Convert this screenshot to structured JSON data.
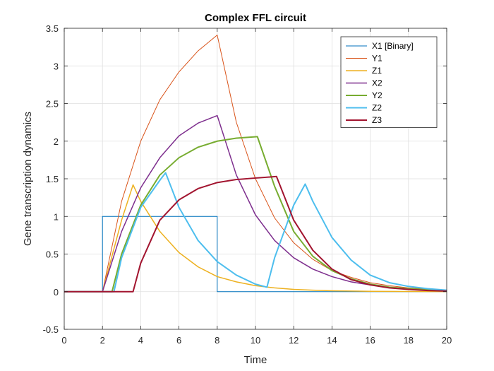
{
  "chart_data": {
    "type": "line",
    "title": "Complex FFL circuit",
    "xlabel": "Time",
    "ylabel": "Gene transcription dynamics",
    "xlim": [
      0,
      20
    ],
    "ylim": [
      -0.5,
      3.5
    ],
    "xticks": [
      0,
      2,
      4,
      6,
      8,
      10,
      12,
      14,
      16,
      18,
      20
    ],
    "yticks": [
      -0.5,
      0,
      0.5,
      1,
      1.5,
      2,
      2.5,
      3,
      3.5
    ],
    "grid": true,
    "legend_position": "top-right",
    "series": [
      {
        "name": "X1 [Binary]",
        "color": "#0072BD",
        "width": 1,
        "x": [
          0,
          2,
          2,
          8,
          8,
          20
        ],
        "y": [
          0,
          0,
          1,
          1,
          0,
          0
        ]
      },
      {
        "name": "Y1",
        "color": "#D95319",
        "width": 1,
        "x": [
          0,
          2,
          3,
          4,
          5,
          6,
          7,
          8,
          9,
          10,
          11,
          12,
          13,
          14,
          15,
          16,
          17,
          18,
          19,
          20
        ],
        "y": [
          0,
          0,
          1.2,
          2.0,
          2.55,
          2.92,
          3.2,
          3.41,
          2.25,
          1.5,
          0.98,
          0.65,
          0.43,
          0.28,
          0.19,
          0.12,
          0.08,
          0.05,
          0.035,
          0.02
        ]
      },
      {
        "name": "Z1",
        "color": "#EDB120",
        "width": 1.5,
        "x": [
          0,
          2,
          3,
          3.6,
          4,
          5,
          6,
          7,
          8,
          9,
          10,
          11,
          12,
          13,
          14,
          16,
          18,
          20
        ],
        "y": [
          0,
          0,
          0.95,
          1.42,
          1.2,
          0.8,
          0.52,
          0.33,
          0.2,
          0.13,
          0.08,
          0.05,
          0.03,
          0.02,
          0.012,
          0.005,
          0.002,
          0.001
        ]
      },
      {
        "name": "X2",
        "color": "#7E2F8E",
        "width": 1.5,
        "x": [
          0,
          2,
          3,
          4,
          5,
          6,
          7,
          8,
          9,
          10,
          11,
          12,
          13,
          14,
          15,
          16,
          17,
          18,
          19,
          20
        ],
        "y": [
          0,
          0,
          0.8,
          1.38,
          1.78,
          2.07,
          2.24,
          2.34,
          1.55,
          1.02,
          0.68,
          0.45,
          0.3,
          0.2,
          0.13,
          0.09,
          0.06,
          0.04,
          0.025,
          0.015
        ]
      },
      {
        "name": "Y2",
        "color": "#77AC30",
        "width": 2,
        "x": [
          0,
          2.5,
          3,
          4,
          5,
          6,
          7,
          8,
          9,
          10.1,
          11,
          12,
          13,
          14,
          15,
          16,
          17,
          18,
          19,
          20
        ],
        "y": [
          0,
          0,
          0.5,
          1.15,
          1.55,
          1.78,
          1.92,
          2.0,
          2.04,
          2.06,
          1.4,
          0.8,
          0.47,
          0.28,
          0.17,
          0.1,
          0.06,
          0.04,
          0.025,
          0.015
        ]
      },
      {
        "name": "Z2",
        "color": "#4DBEEE",
        "width": 2,
        "x": [
          0,
          2.6,
          3,
          4,
          5,
          5.3,
          6,
          7,
          8,
          9,
          10,
          10.6,
          11,
          12,
          12.6,
          13,
          14,
          15,
          16,
          17,
          18,
          19,
          20
        ],
        "y": [
          0,
          0,
          0.45,
          1.12,
          1.48,
          1.58,
          1.12,
          0.68,
          0.4,
          0.22,
          0.1,
          0.06,
          0.45,
          1.15,
          1.43,
          1.2,
          0.72,
          0.42,
          0.22,
          0.12,
          0.07,
          0.04,
          0.02
        ]
      },
      {
        "name": "Z3",
        "color": "#A2142F",
        "width": 2,
        "x": [
          0,
          3.6,
          4,
          5,
          6,
          7,
          8,
          9,
          10,
          11.1,
          12,
          13,
          14,
          15,
          16,
          17,
          18,
          19,
          20
        ],
        "y": [
          0,
          0,
          0.38,
          0.95,
          1.22,
          1.37,
          1.45,
          1.49,
          1.51,
          1.53,
          0.95,
          0.55,
          0.3,
          0.16,
          0.09,
          0.05,
          0.03,
          0.015,
          0.008
        ]
      }
    ]
  }
}
